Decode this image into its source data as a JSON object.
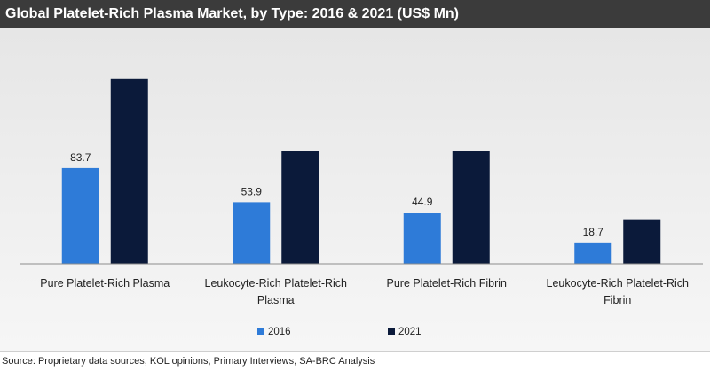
{
  "header": {
    "title": "Global Platelet-Rich Plasma Market, by Type: 2016 & 2021 (US$ Mn)"
  },
  "footer": {
    "source": "Source: Proprietary data sources, KOL opinions, Primary Interviews, SA-BRC Analysis"
  },
  "colors": {
    "series_2016": "#2e7bd8",
    "series_2021": "#0b1a3a",
    "axis": "#8c8c8c",
    "text": "#222222"
  },
  "chart_data": {
    "type": "bar",
    "categories": [
      [
        "Pure Platelet-Rich Plasma"
      ],
      [
        "Leukocyte-Rich Platelet-Rich",
        "Plasma"
      ],
      [
        "Pure Platelet-Rich Fibrin"
      ],
      [
        "Leukocyte-Rich Platelet-Rich",
        "Fibrin"
      ]
    ],
    "series": [
      {
        "name": "2016",
        "values": [
          83.7,
          53.9,
          44.9,
          18.7
        ],
        "labels": [
          "83.7",
          "53.9",
          "44.9",
          "18.7"
        ]
      },
      {
        "name": "2021",
        "values": [
          162,
          99,
          99,
          39
        ]
      }
    ],
    "ylim": [
      0,
      175
    ],
    "grid": false,
    "legend": "bottom-center"
  }
}
